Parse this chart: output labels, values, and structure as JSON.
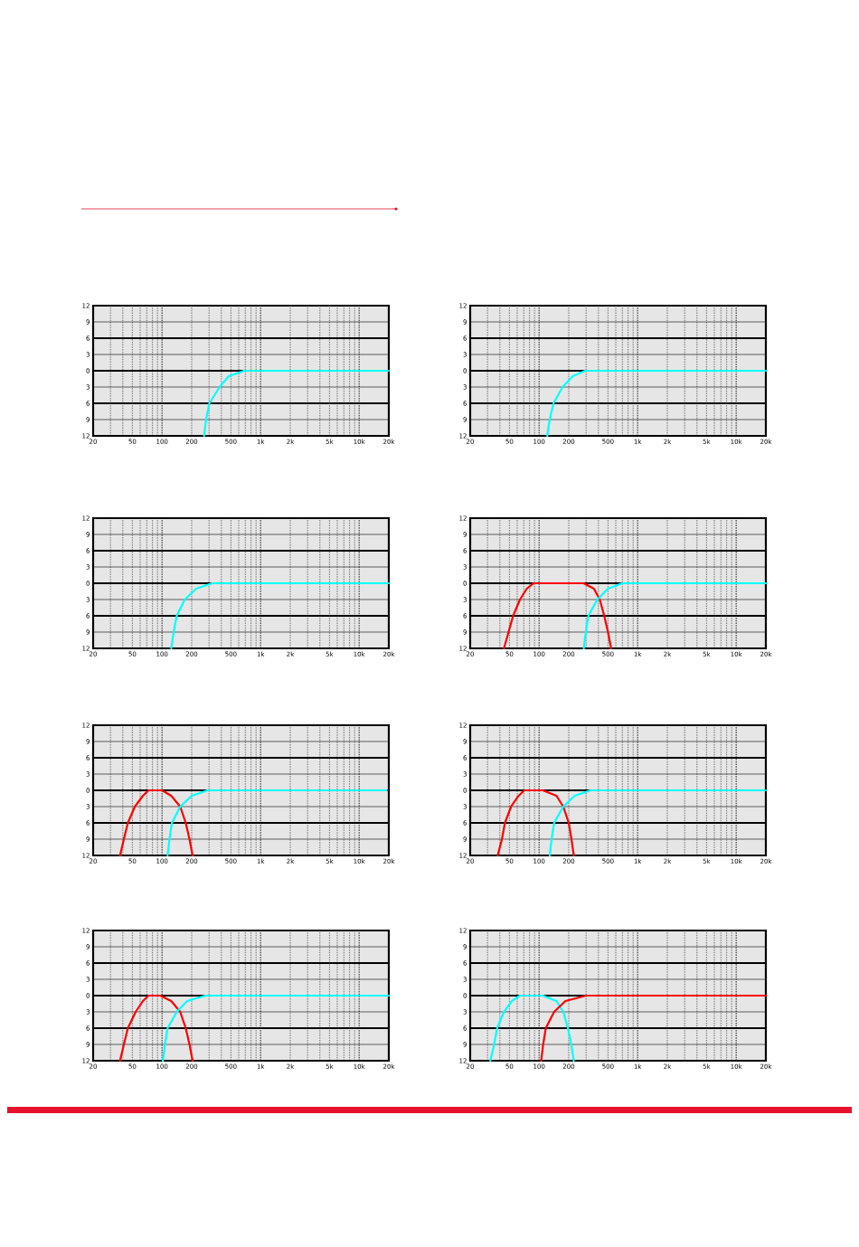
{
  "chart_data": [
    {
      "type": "line",
      "xlim": [
        20,
        20000
      ],
      "ylim": [
        -12,
        12
      ],
      "log": "x",
      "grid": true,
      "xticks": [
        20,
        50,
        100,
        200,
        500,
        {
          "value": 1000,
          "label": "1k"
        },
        {
          "value": 2000,
          "label": "2k"
        },
        {
          "value": 5000,
          "label": "5k"
        },
        {
          "value": 10000,
          "label": "10k"
        },
        {
          "value": 20000,
          "label": "20k"
        }
      ],
      "yticks": [
        12,
        9,
        6,
        3,
        0,
        {
          "value": -3,
          "label": "3"
        },
        {
          "value": -6,
          "label": "6"
        },
        {
          "value": -9,
          "label": "9"
        },
        {
          "value": -12,
          "label": "12"
        }
      ],
      "series": [
        {
          "color": "#00ffff",
          "x": [
            267,
            280,
            302,
            384,
            475,
            680,
            20000
          ],
          "values": [
            -12,
            -9,
            -6,
            -3,
            -1,
            0,
            0
          ]
        }
      ]
    },
    {
      "type": "line",
      "xlim": [
        20,
        20000
      ],
      "ylim": [
        -12,
        12
      ],
      "log": "x",
      "grid": true,
      "xticks": [
        20,
        50,
        100,
        200,
        500,
        {
          "value": 1000,
          "label": "1k"
        },
        {
          "value": 2000,
          "label": "2k"
        },
        {
          "value": 5000,
          "label": "5k"
        },
        {
          "value": 10000,
          "label": "10k"
        },
        {
          "value": 20000,
          "label": "20k"
        }
      ],
      "yticks": [
        12,
        9,
        6,
        3,
        0,
        {
          "value": -3,
          "label": "3"
        },
        {
          "value": -6,
          "label": "6"
        },
        {
          "value": -9,
          "label": "9"
        },
        {
          "value": -12,
          "label": "12"
        }
      ],
      "series": [
        {
          "color": "#00ffff",
          "x": [
            121,
            128,
            140,
            173,
            220,
            294,
            20000
          ],
          "values": [
            -12,
            -9,
            -6,
            -3,
            -1,
            0,
            0
          ]
        }
      ]
    },
    {
      "type": "line",
      "xlim": [
        20,
        20000
      ],
      "ylim": [
        -12,
        12
      ],
      "log": "x",
      "grid": true,
      "xticks": [
        20,
        50,
        100,
        200,
        500,
        {
          "value": 1000,
          "label": "1k"
        },
        {
          "value": 2000,
          "label": "2k"
        },
        {
          "value": 5000,
          "label": "5k"
        },
        {
          "value": 10000,
          "label": "10k"
        },
        {
          "value": 20000,
          "label": "20k"
        }
      ],
      "yticks": [
        12,
        9,
        6,
        3,
        0,
        {
          "value": -3,
          "label": "3"
        },
        {
          "value": -6,
          "label": "6"
        },
        {
          "value": -9,
          "label": "9"
        },
        {
          "value": -12,
          "label": "12"
        }
      ],
      "series": [
        {
          "color": "#00ffff",
          "x": [
            124,
            131,
            141,
            170,
            222,
            323,
            20000
          ],
          "values": [
            -12,
            -9,
            -6,
            -3,
            -1,
            0,
            0
          ]
        }
      ]
    },
    {
      "type": "line",
      "xlim": [
        20,
        20000
      ],
      "ylim": [
        -12,
        12
      ],
      "log": "x",
      "grid": true,
      "xticks": [
        20,
        50,
        100,
        200,
        500,
        {
          "value": 1000,
          "label": "1k"
        },
        {
          "value": 2000,
          "label": "2k"
        },
        {
          "value": 5000,
          "label": "5k"
        },
        {
          "value": 10000,
          "label": "10k"
        },
        {
          "value": 20000,
          "label": "20k"
        }
      ],
      "yticks": [
        12,
        9,
        6,
        3,
        0,
        {
          "value": -3,
          "label": "3"
        },
        {
          "value": -6,
          "label": "6"
        },
        {
          "value": -9,
          "label": "9"
        },
        {
          "value": -12,
          "label": "12"
        }
      ],
      "series": [
        {
          "color": "#ff0000",
          "x": [
            44,
            49,
            54.5,
            64,
            75,
            88,
            284,
            360,
            413,
            458,
            500,
            538
          ],
          "values": [
            -12,
            -9,
            -6,
            -3,
            -1,
            0,
            0,
            -1,
            -3,
            -6,
            -9,
            -12
          ]
        },
        {
          "color": "#00ffff",
          "x": [
            284,
            298,
            316,
            390,
            500,
            700,
            20000
          ],
          "values": [
            -12,
            -9,
            -6,
            -3,
            -1,
            0,
            0
          ]
        }
      ]
    },
    {
      "type": "line",
      "xlim": [
        20,
        20000
      ],
      "ylim": [
        -12,
        12
      ],
      "log": "x",
      "grid": true,
      "xticks": [
        20,
        50,
        100,
        200,
        500,
        {
          "value": 1000,
          "label": "1k"
        },
        {
          "value": 2000,
          "label": "2k"
        },
        {
          "value": 5000,
          "label": "5k"
        },
        {
          "value": 10000,
          "label": "10k"
        },
        {
          "value": 20000,
          "label": "20k"
        }
      ],
      "yticks": [
        12,
        9,
        6,
        3,
        0,
        {
          "value": -3,
          "label": "3"
        },
        {
          "value": -6,
          "label": "6"
        },
        {
          "value": -9,
          "label": "9"
        },
        {
          "value": -12,
          "label": "12"
        }
      ],
      "series": [
        {
          "color": "#ff0000",
          "x": [
            37.5,
            41,
            45,
            53,
            64,
            73,
            100,
            124,
            153,
            174,
            190,
            204
          ],
          "values": [
            -12,
            -9,
            -6,
            -3,
            -1,
            0,
            0,
            -1,
            -3,
            -6,
            -9,
            -12
          ]
        },
        {
          "color": "#00ffff",
          "x": [
            114,
            119,
            126,
            153,
            200,
            290,
            19000
          ],
          "values": [
            -12,
            -9,
            -6,
            -3,
            -1,
            0,
            0
          ]
        }
      ]
    },
    {
      "type": "line",
      "xlim": [
        20,
        20000
      ],
      "ylim": [
        -12,
        12
      ],
      "log": "x",
      "grid": true,
      "xticks": [
        20,
        50,
        100,
        200,
        500,
        {
          "value": 1000,
          "label": "1k"
        },
        {
          "value": 2000,
          "label": "2k"
        },
        {
          "value": 5000,
          "label": "5k"
        },
        {
          "value": 10000,
          "label": "10k"
        },
        {
          "value": 20000,
          "label": "20k"
        }
      ],
      "yticks": [
        12,
        9,
        6,
        3,
        0,
        {
          "value": -3,
          "label": "3"
        },
        {
          "value": -6,
          "label": "6"
        },
        {
          "value": -9,
          "label": "9"
        },
        {
          "value": -12,
          "label": "12"
        }
      ],
      "series": [
        {
          "color": "#ff0000",
          "x": [
            38,
            42,
            45,
            52,
            62,
            71,
            109,
            150,
            176,
            200,
            213,
            225
          ],
          "values": [
            -12,
            -9,
            -6,
            -3,
            -1,
            0,
            0,
            -1,
            -3,
            -6,
            -9,
            -12
          ]
        },
        {
          "color": "#00ffff",
          "x": [
            128,
            134,
            142,
            176,
            230,
            333,
            20000
          ],
          "values": [
            -12,
            -9,
            -6,
            -3,
            -1,
            0,
            0
          ]
        }
      ]
    },
    {
      "type": "line",
      "xlim": [
        20,
        20000
      ],
      "ylim": [
        -12,
        12
      ],
      "log": "x",
      "grid": true,
      "xticks": [
        20,
        50,
        100,
        200,
        500,
        {
          "value": 1000,
          "label": "1k"
        },
        {
          "value": 2000,
          "label": "2k"
        },
        {
          "value": 5000,
          "label": "5k"
        },
        {
          "value": 10000,
          "label": "10k"
        },
        {
          "value": 20000,
          "label": "20k"
        }
      ],
      "yticks": [
        12,
        9,
        6,
        3,
        0,
        {
          "value": -3,
          "label": "3"
        },
        {
          "value": -6,
          "label": "6"
        },
        {
          "value": -9,
          "label": "9"
        },
        {
          "value": -12,
          "label": "12"
        }
      ],
      "series": [
        {
          "color": "#ff0000",
          "x": [
            37.5,
            41,
            45,
            54,
            64,
            73,
            96,
            124,
            153,
            174,
            190,
            204
          ],
          "values": [
            -12,
            -9,
            -6,
            -3,
            -1,
            0,
            0,
            -1,
            -3,
            -6,
            -9,
            -12
          ]
        },
        {
          "color": "#00ffff",
          "x": [
            102,
            107,
            114,
            141,
            180,
            275,
            20000
          ],
          "values": [
            -12,
            -9,
            -6,
            -3,
            -1,
            0,
            0
          ]
        }
      ]
    },
    {
      "type": "line",
      "xlim": [
        20,
        20000
      ],
      "ylim": [
        -12,
        12
      ],
      "log": "x",
      "grid": true,
      "xticks": [
        20,
        50,
        100,
        200,
        500,
        {
          "value": 1000,
          "label": "1k"
        },
        {
          "value": 2000,
          "label": "2k"
        },
        {
          "value": 5000,
          "label": "5k"
        },
        {
          "value": 10000,
          "label": "10k"
        },
        {
          "value": 20000,
          "label": "20k"
        }
      ],
      "yticks": [
        12,
        9,
        6,
        3,
        0,
        {
          "value": -3,
          "label": "3"
        },
        {
          "value": -6,
          "label": "6"
        },
        {
          "value": -9,
          "label": "9"
        },
        {
          "value": -12,
          "label": "12"
        }
      ],
      "series": [
        {
          "color": "#00ffff",
          "x": [
            32,
            35,
            37.5,
            44,
            53,
            64,
            109,
            150,
            176,
            196,
            212,
            225
          ],
          "values": [
            -12,
            -9,
            -6,
            -3,
            -1,
            0,
            0,
            -1,
            -3,
            -6,
            -9,
            -12
          ]
        },
        {
          "color": "#ff0000",
          "x": [
            105,
            110,
            117,
            142,
            185,
            300,
            20000
          ],
          "values": [
            -12,
            -9,
            -6,
            -3,
            -1,
            0,
            0
          ]
        }
      ]
    }
  ]
}
